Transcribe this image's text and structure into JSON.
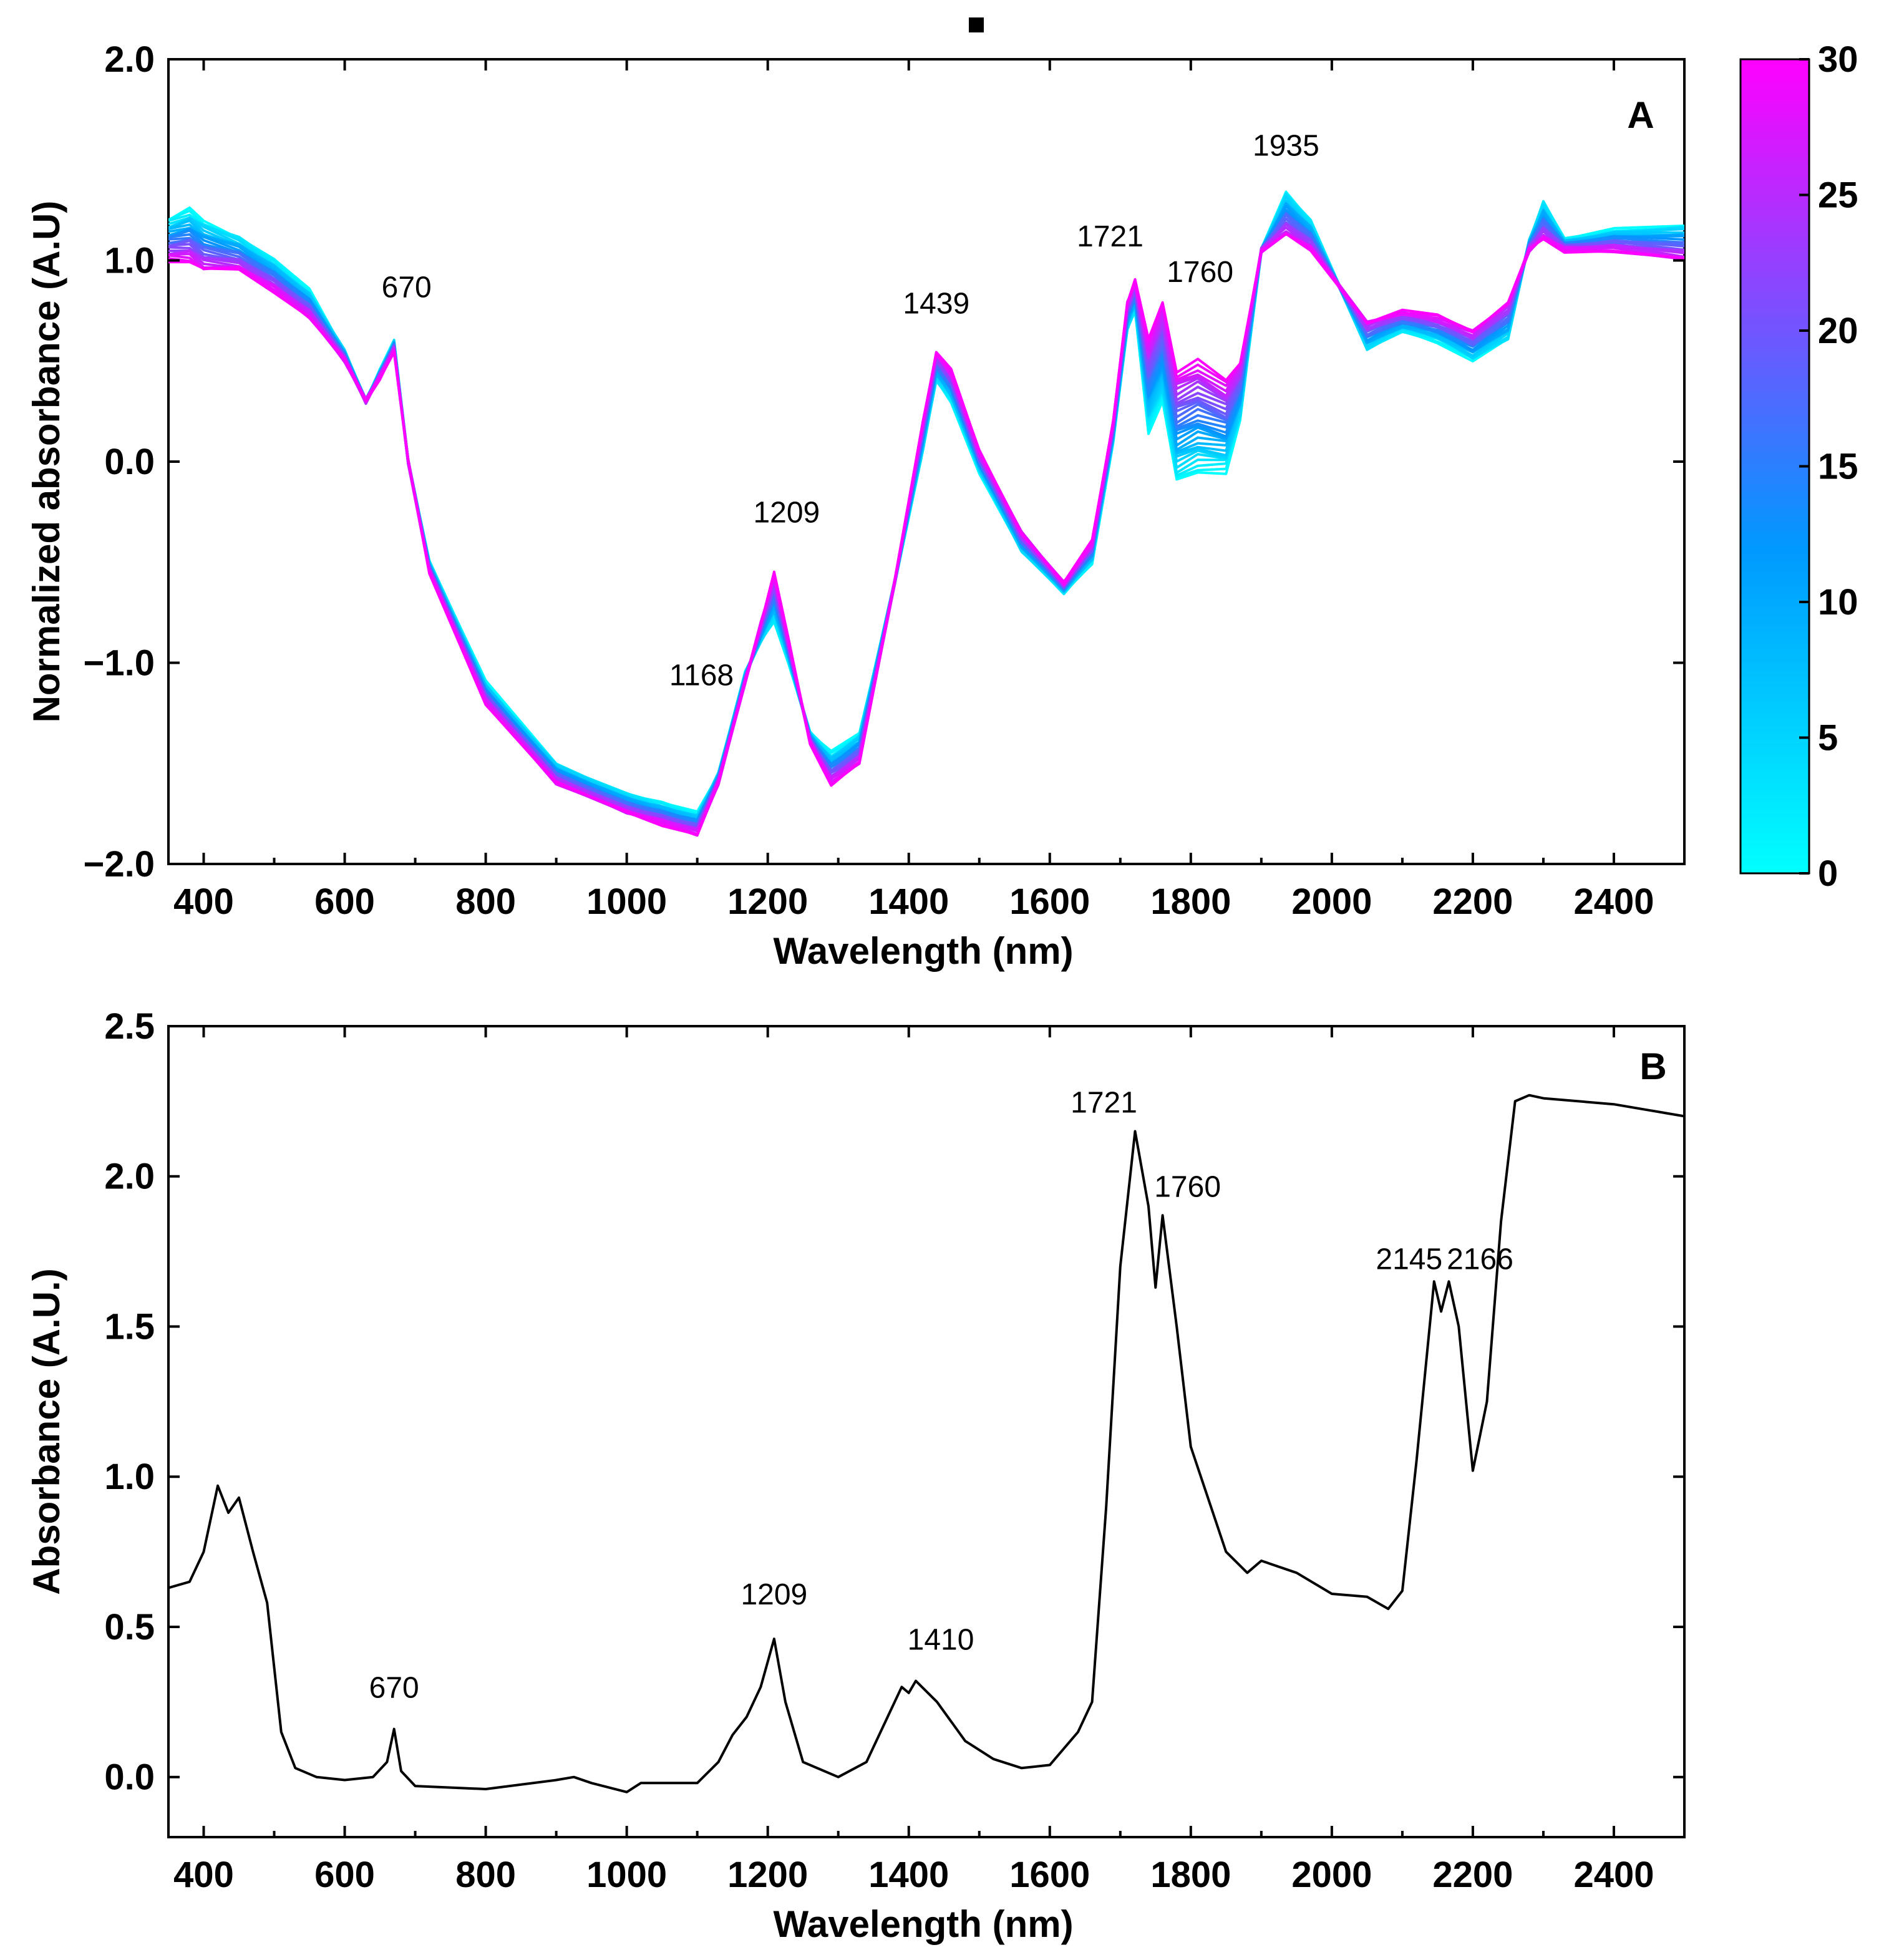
{
  "chart_data": [
    {
      "type": "line",
      "panel": "A",
      "title": "",
      "xlabel": "Wavelength (nm)",
      "ylabel": "Normalized absorbance (A.U)",
      "xlim": [
        350,
        2500
      ],
      "ylim": [
        -2.0,
        2.0
      ],
      "grid": false,
      "x_ticks": [
        400,
        600,
        800,
        1000,
        1200,
        1400,
        1600,
        1800,
        2000,
        2200,
        2400
      ],
      "x_tick_labels": [
        "400",
        "600",
        "800",
        "1000",
        "1200",
        "1400",
        "1600",
        "1800",
        "2000",
        "2200",
        "2400"
      ],
      "y_ticks": [
        -2.0,
        -1.0,
        0.0,
        1.0,
        2.0
      ],
      "y_tick_labels": [
        "−2.0",
        "−1.0",
        "0.0",
        "1.0",
        "2.0"
      ],
      "colorbar": {
        "range": [
          0,
          30
        ],
        "ticks": [
          0,
          5,
          10,
          15,
          20,
          25,
          30
        ],
        "tick_labels": [
          "0",
          "5",
          "10",
          "15",
          "20",
          "25",
          "30"
        ],
        "colors": [
          "#00ffff",
          "#0099ff",
          "#ff00ff"
        ]
      },
      "series_count": 30,
      "series_description_hint": "spectra colored by colorbar value 0 (cyan) to 30 (magenta)",
      "series_low": {
        "name": "0",
        "x": [
          350,
          380,
          400,
          450,
          500,
          550,
          600,
          630,
          650,
          670,
          690,
          720,
          800,
          900,
          1000,
          1050,
          1100,
          1130,
          1168,
          1190,
          1209,
          1230,
          1260,
          1290,
          1330,
          1380,
          1420,
          1439,
          1460,
          1500,
          1560,
          1620,
          1660,
          1690,
          1710,
          1721,
          1740,
          1760,
          1780,
          1810,
          1850,
          1870,
          1900,
          1935,
          1970,
          2050,
          2100,
          2150,
          2200,
          2250,
          2280,
          2300,
          2330,
          2400,
          2500
        ],
        "y": [
          1.2,
          1.25,
          1.2,
          1.12,
          1.0,
          0.85,
          0.55,
          0.3,
          0.45,
          0.6,
          0.0,
          -0.5,
          -1.1,
          -1.5,
          -1.65,
          -1.7,
          -1.75,
          -1.55,
          -1.05,
          -0.9,
          -0.8,
          -1.0,
          -1.35,
          -1.45,
          -1.35,
          -0.6,
          0.05,
          0.4,
          0.3,
          -0.05,
          -0.45,
          -0.65,
          -0.5,
          0.1,
          0.65,
          0.75,
          0.15,
          0.3,
          -0.1,
          -0.05,
          -0.05,
          0.2,
          1.05,
          1.35,
          1.2,
          0.55,
          0.65,
          0.6,
          0.5,
          0.6,
          1.1,
          1.3,
          1.1,
          1.15,
          1.18
        ]
      },
      "series_high": {
        "name": "30",
        "x": [
          350,
          380,
          400,
          450,
          500,
          550,
          600,
          630,
          650,
          670,
          690,
          720,
          800,
          900,
          1000,
          1050,
          1100,
          1130,
          1168,
          1190,
          1209,
          1230,
          1260,
          1290,
          1330,
          1380,
          1420,
          1439,
          1460,
          1500,
          1560,
          1620,
          1660,
          1690,
          1710,
          1721,
          1740,
          1760,
          1780,
          1810,
          1850,
          1870,
          1900,
          1935,
          1970,
          2050,
          2100,
          2150,
          2200,
          2250,
          2280,
          2300,
          2330,
          2400,
          2500
        ],
        "y": [
          1.0,
          1.0,
          0.95,
          0.95,
          0.85,
          0.72,
          0.5,
          0.3,
          0.42,
          0.55,
          0.0,
          -0.55,
          -1.2,
          -1.6,
          -1.75,
          -1.8,
          -1.85,
          -1.6,
          -1.1,
          -0.8,
          -0.55,
          -0.9,
          -1.4,
          -1.6,
          -1.5,
          -0.6,
          0.2,
          0.55,
          0.45,
          0.05,
          -0.35,
          -0.6,
          -0.4,
          0.2,
          0.8,
          0.9,
          0.6,
          0.8,
          0.45,
          0.5,
          0.4,
          0.5,
          1.05,
          1.12,
          1.05,
          0.7,
          0.75,
          0.72,
          0.65,
          0.8,
          1.05,
          1.1,
          1.05,
          1.05,
          1.0
        ]
      },
      "annotations": [
        {
          "text": "670",
          "x": 670,
          "y": 0.6
        },
        {
          "text": "1168",
          "x": 1168,
          "y": -1.05
        },
        {
          "text": "1209",
          "x": 1209,
          "y": -0.55
        },
        {
          "text": "1439",
          "x": 1439,
          "y": 0.55
        },
        {
          "text": "1721",
          "x": 1721,
          "y": 0.9
        },
        {
          "text": "1760",
          "x": 1760,
          "y": 0.8
        },
        {
          "text": "1935",
          "x": 1935,
          "y": 1.35
        }
      ],
      "panel_label": "A"
    },
    {
      "type": "line",
      "panel": "B",
      "title": "",
      "xlabel": "Wavelength (nm)",
      "ylabel": "Absorbance (A.U.)",
      "xlim": [
        350,
        2500
      ],
      "ylim": [
        -0.2,
        2.5
      ],
      "grid": false,
      "x_ticks": [
        400,
        600,
        800,
        1000,
        1200,
        1400,
        1600,
        1800,
        2000,
        2200,
        2400
      ],
      "x_tick_labels": [
        "400",
        "600",
        "800",
        "1000",
        "1200",
        "1400",
        "1600",
        "1800",
        "2000",
        "2200",
        "2400"
      ],
      "y_ticks": [
        0.0,
        0.5,
        1.0,
        1.5,
        2.0,
        2.5
      ],
      "y_tick_labels": [
        "0.0",
        "0.5",
        "1.0",
        "1.5",
        "2.0",
        "2.5"
      ],
      "series": [
        {
          "name": "spectrum",
          "color": "#000000",
          "x": [
            350,
            380,
            400,
            420,
            435,
            450,
            470,
            490,
            510,
            530,
            560,
            600,
            640,
            660,
            670,
            680,
            700,
            800,
            900,
            925,
            950,
            1000,
            1020,
            1050,
            1100,
            1130,
            1150,
            1170,
            1190,
            1209,
            1225,
            1250,
            1300,
            1340,
            1370,
            1390,
            1400,
            1410,
            1440,
            1480,
            1520,
            1560,
            1600,
            1640,
            1660,
            1680,
            1700,
            1721,
            1740,
            1750,
            1760,
            1780,
            1800,
            1850,
            1880,
            1900,
            1950,
            2000,
            2050,
            2080,
            2100,
            2120,
            2145,
            2155,
            2166,
            2180,
            2200,
            2220,
            2240,
            2260,
            2280,
            2300,
            2350,
            2400,
            2450,
            2500
          ],
          "y": [
            0.63,
            0.65,
            0.75,
            0.97,
            0.88,
            0.93,
            0.75,
            0.58,
            0.15,
            0.03,
            0.0,
            -0.01,
            0.0,
            0.05,
            0.16,
            0.02,
            -0.03,
            -0.04,
            -0.01,
            0.0,
            -0.02,
            -0.05,
            -0.02,
            -0.02,
            -0.02,
            0.05,
            0.14,
            0.2,
            0.3,
            0.46,
            0.25,
            0.05,
            0.0,
            0.05,
            0.2,
            0.3,
            0.28,
            0.32,
            0.25,
            0.12,
            0.06,
            0.03,
            0.04,
            0.15,
            0.25,
            0.9,
            1.7,
            2.15,
            1.9,
            1.63,
            1.87,
            1.5,
            1.1,
            0.75,
            0.68,
            0.72,
            0.68,
            0.61,
            0.6,
            0.56,
            0.62,
            1.05,
            1.65,
            1.55,
            1.65,
            1.5,
            1.02,
            1.25,
            1.85,
            2.25,
            2.27,
            2.26,
            2.25,
            2.24,
            2.22,
            2.2
          ]
        }
      ],
      "annotations": [
        {
          "text": "670",
          "x": 670,
          "y": 0.16
        },
        {
          "text": "1209",
          "x": 1209,
          "y": 0.46
        },
        {
          "text": "1410",
          "x": 1410,
          "y": 0.32
        },
        {
          "text": "1721",
          "x": 1721,
          "y": 2.15
        },
        {
          "text": "1760",
          "x": 1760,
          "y": 1.87
        },
        {
          "text": "2145",
          "x": 2145,
          "y": 1.65
        },
        {
          "text": "2166",
          "x": 2166,
          "y": 1.65
        }
      ],
      "panel_label": "B"
    }
  ]
}
